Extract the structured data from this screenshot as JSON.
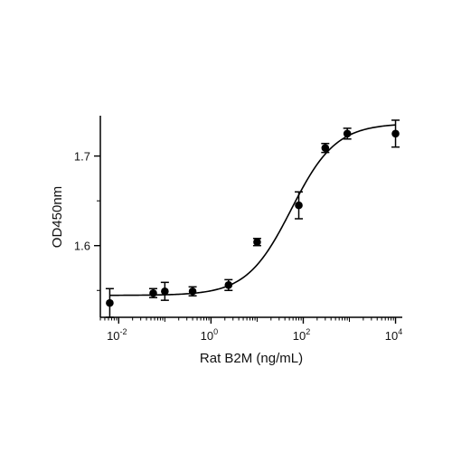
{
  "chart_data": {
    "type": "scatter",
    "title": "",
    "xlabel": "Rat B2M (ng/mL)",
    "ylabel": "OD450nm",
    "x_scale": "log10",
    "xlim": [
      0.004,
      14000
    ],
    "ylim": [
      1.52,
      1.745
    ],
    "grid": false,
    "x_ticks": [
      {
        "value": 0.01,
        "base": "10",
        "exp": "-2"
      },
      {
        "value": 1,
        "base": "10",
        "exp": "0"
      },
      {
        "value": 100,
        "base": "10",
        "exp": "2"
      },
      {
        "value": 10000,
        "base": "10",
        "exp": "4"
      }
    ],
    "y_ticks": [
      {
        "value": 1.6,
        "label": "1.6"
      },
      {
        "value": 1.7,
        "label": "1.7"
      }
    ],
    "points": [
      {
        "x": 0.0064,
        "y": 1.536,
        "err": 0.016
      },
      {
        "x": 0.056,
        "y": 1.547,
        "err": 0.005
      },
      {
        "x": 0.1,
        "y": 1.549,
        "err": 0.01
      },
      {
        "x": 0.4,
        "y": 1.549,
        "err": 0.005
      },
      {
        "x": 2.4,
        "y": 1.556,
        "err": 0.006
      },
      {
        "x": 10,
        "y": 1.604,
        "err": 0.004
      },
      {
        "x": 80,
        "y": 1.645,
        "err": 0.015
      },
      {
        "x": 300,
        "y": 1.709,
        "err": 0.005
      },
      {
        "x": 900,
        "y": 1.725,
        "err": 0.006
      },
      {
        "x": 10000,
        "y": 1.725,
        "err": 0.015
      }
    ],
    "fit_curve": {
      "model": "4PL",
      "bottom": 1.5445,
      "top": 1.7365,
      "ec50": 55,
      "hill": 0.9
    },
    "marker_color": "#000000",
    "line_color": "#000000"
  }
}
